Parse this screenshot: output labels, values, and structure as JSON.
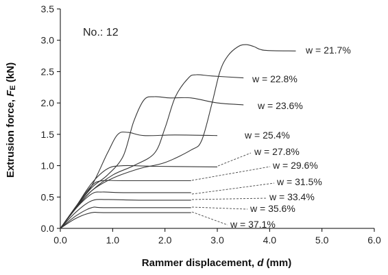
{
  "chart_data": {
    "type": "line",
    "xlabel_prefix": "Rammer displacement, ",
    "xlabel_var": "d",
    "xlabel_suffix": " (mm)",
    "ylabel_prefix": "Extrusion force, ",
    "ylabel_var": "F",
    "ylabel_sub": "E",
    "ylabel_suffix": " (kN)",
    "annotation": "No.: 12",
    "xlim": [
      0,
      6
    ],
    "ylim": [
      0,
      3.5
    ],
    "xticks": [
      "0.0",
      "1.0",
      "2.0",
      "3.0",
      "4.0",
      "5.0",
      "6.0"
    ],
    "yticks": [
      "0.0",
      "0.5",
      "1.0",
      "1.5",
      "2.0",
      "2.5",
      "3.0",
      "3.5"
    ],
    "grid": false,
    "series": [
      {
        "name": "w = 21.7%",
        "points": [
          [
            0,
            0
          ],
          [
            0.3,
            0.32
          ],
          [
            0.6,
            0.6
          ],
          [
            1.0,
            0.8
          ],
          [
            1.5,
            0.95
          ],
          [
            2.0,
            1.05
          ],
          [
            2.5,
            1.25
          ],
          [
            2.7,
            1.4
          ],
          [
            2.9,
            2.0
          ],
          [
            3.05,
            2.5
          ],
          [
            3.2,
            2.75
          ],
          [
            3.4,
            2.9
          ],
          [
            3.55,
            2.93
          ],
          [
            3.7,
            2.9
          ],
          [
            3.9,
            2.84
          ],
          [
            4.5,
            2.83
          ]
        ]
      },
      {
        "name": "w = 22.8%",
        "points": [
          [
            0,
            0
          ],
          [
            0.3,
            0.32
          ],
          [
            0.6,
            0.6
          ],
          [
            1.0,
            0.85
          ],
          [
            1.4,
            1.0
          ],
          [
            1.8,
            1.2
          ],
          [
            2.0,
            1.6
          ],
          [
            2.2,
            2.1
          ],
          [
            2.45,
            2.4
          ],
          [
            2.6,
            2.45
          ],
          [
            2.9,
            2.43
          ],
          [
            3.5,
            2.4
          ]
        ]
      },
      {
        "name": "w = 23.6%",
        "points": [
          [
            0,
            0
          ],
          [
            0.3,
            0.33
          ],
          [
            0.6,
            0.65
          ],
          [
            0.9,
            0.85
          ],
          [
            1.2,
            1.15
          ],
          [
            1.4,
            1.7
          ],
          [
            1.6,
            2.05
          ],
          [
            1.8,
            2.1
          ],
          [
            2.1,
            2.08
          ],
          [
            2.5,
            2.08
          ],
          [
            3.0,
            2.0
          ],
          [
            3.5,
            1.97
          ]
        ]
      },
      {
        "name": "w = 25.4%",
        "points": [
          [
            0,
            0
          ],
          [
            0.3,
            0.35
          ],
          [
            0.6,
            0.68
          ],
          [
            0.9,
            1.2
          ],
          [
            1.1,
            1.5
          ],
          [
            1.3,
            1.53
          ],
          [
            1.6,
            1.48
          ],
          [
            2.2,
            1.49
          ],
          [
            3.0,
            1.48
          ]
        ]
      },
      {
        "name": "w = 27.8%",
        "points": [
          [
            0,
            0
          ],
          [
            0.3,
            0.35
          ],
          [
            0.6,
            0.72
          ],
          [
            0.9,
            0.95
          ],
          [
            1.2,
            1.0
          ],
          [
            1.8,
            0.99
          ],
          [
            3.0,
            0.98
          ]
        ]
      },
      {
        "name": "w = 29.6%",
        "points": [
          [
            0,
            0
          ],
          [
            0.3,
            0.35
          ],
          [
            0.6,
            0.68
          ],
          [
            0.8,
            0.76
          ],
          [
            1.2,
            0.76
          ],
          [
            2.5,
            0.76
          ]
        ]
      },
      {
        "name": "w = 31.5%",
        "points": [
          [
            0,
            0
          ],
          [
            0.3,
            0.32
          ],
          [
            0.6,
            0.55
          ],
          [
            0.8,
            0.58
          ],
          [
            1.2,
            0.57
          ],
          [
            2.5,
            0.57
          ]
        ]
      },
      {
        "name": "w = 33.4%",
        "points": [
          [
            0,
            0
          ],
          [
            0.3,
            0.26
          ],
          [
            0.6,
            0.44
          ],
          [
            0.9,
            0.46
          ],
          [
            1.5,
            0.45
          ],
          [
            2.5,
            0.45
          ]
        ]
      },
      {
        "name": "w = 35.6%",
        "points": [
          [
            0,
            0
          ],
          [
            0.3,
            0.2
          ],
          [
            0.6,
            0.33
          ],
          [
            0.9,
            0.33
          ],
          [
            2.5,
            0.33
          ]
        ]
      },
      {
        "name": "w = 37.1%",
        "points": [
          [
            0,
            0
          ],
          [
            0.3,
            0.16
          ],
          [
            0.6,
            0.25
          ],
          [
            0.9,
            0.25
          ],
          [
            2.5,
            0.25
          ]
        ]
      }
    ]
  }
}
